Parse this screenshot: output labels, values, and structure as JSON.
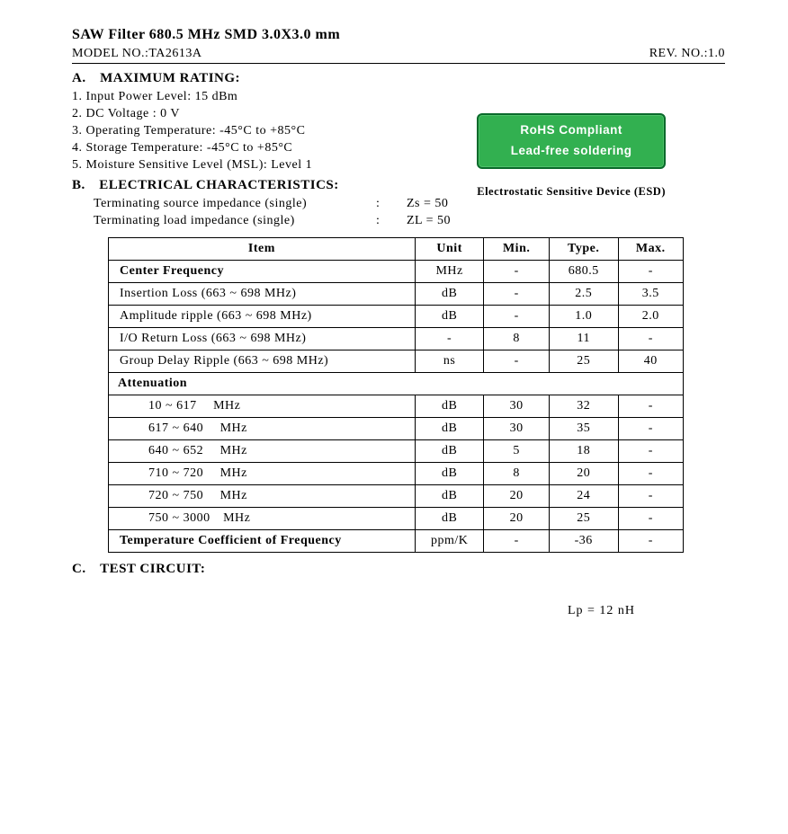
{
  "title": "SAW Filter 680.5 MHz SMD 3.0X3.0 mm",
  "model_label": "MODEL NO.:",
  "model_value": "TA2613A",
  "rev_label": "REV. NO.:",
  "rev_value": "1.0",
  "badge": {
    "line1": "RoHS Compliant",
    "line2": "Lead-free soldering",
    "bg_color": "#32b050",
    "border_color": "#0a6a2b",
    "text_color": "#ffffff"
  },
  "esd_note": "Electrostatic Sensitive Device (ESD)",
  "section_a": {
    "head": "A. MAXIMUM RATING:",
    "items": [
      "1. Input Power Level: 15 dBm",
      "2. DC Voltage : 0 V",
      "3. Operating Temperature: -45°C to +85°C",
      "4. Storage Temperature: -45°C to +85°C",
      "5. Moisture Sensitive Level (MSL): Level 1"
    ]
  },
  "section_b": {
    "head": "B. ELECTRICAL CHARACTERISTICS:",
    "imp1_label": "Terminating source impedance (single)",
    "imp1_value": "Zs = 50",
    "imp2_label": "Terminating load impedance (single)",
    "imp2_value": "ZL = 50",
    "colon": ":"
  },
  "table": {
    "columns": [
      "Item",
      "Unit",
      "Min.",
      "Type.",
      "Max."
    ],
    "col_widths": [
      "320px",
      "70px",
      "70px",
      "70px",
      "70px"
    ],
    "rows": [
      {
        "item": "Center Frequency",
        "unit": "MHz",
        "min": "-",
        "typ": "680.5",
        "max": "-",
        "bold": true
      },
      {
        "item": "Insertion Loss (663 ~ 698 MHz)",
        "unit": "dB",
        "min": "-",
        "typ": "2.5",
        "max": "3.5"
      },
      {
        "item": "Amplitude ripple (663 ~ 698 MHz)",
        "unit": "dB",
        "min": "-",
        "typ": "1.0",
        "max": "2.0"
      },
      {
        "item": "I/O Return Loss (663 ~ 698 MHz)",
        "unit": "-",
        "min": "8",
        "typ": "11",
        "max": "-"
      },
      {
        "item": "Group Delay Ripple (663 ~ 698 MHz)",
        "unit": "ns",
        "min": "-",
        "typ": "25",
        "max": "40"
      }
    ],
    "attenuation_head": "Attenuation",
    "att_rows": [
      {
        "item": "  10 ~ 617  MHz",
        "unit": "dB",
        "min": "30",
        "typ": "32",
        "max": "-"
      },
      {
        "item": "617 ~ 640  MHz",
        "unit": "dB",
        "min": "30",
        "typ": "35",
        "max": "-"
      },
      {
        "item": "640 ~ 652  MHz",
        "unit": "dB",
        "min": "5",
        "typ": "18",
        "max": "-"
      },
      {
        "item": "710 ~ 720  MHz",
        "unit": "dB",
        "min": "8",
        "typ": "20",
        "max": "-"
      },
      {
        "item": "720 ~ 750  MHz",
        "unit": "dB",
        "min": "20",
        "typ": "24",
        "max": "-"
      },
      {
        "item": "750 ~ 3000 MHz",
        "unit": "dB",
        "min": "20",
        "typ": "25",
        "max": "-"
      }
    ],
    "temp_coef": {
      "item": "Temperature Coefficient of Frequency",
      "unit": "ppm/K",
      "min": "-",
      "typ": "-36",
      "max": "-",
      "bold": true
    }
  },
  "section_c": {
    "head": "C. TEST CIRCUIT:",
    "lp_value": "Lp = 12 nH"
  }
}
